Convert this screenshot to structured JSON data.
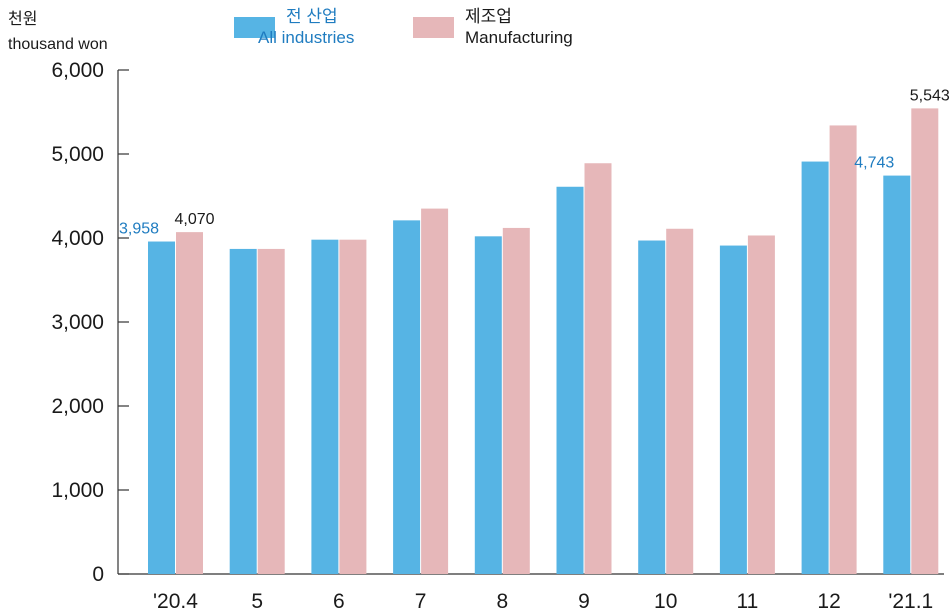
{
  "chart_data": {
    "type": "bar",
    "unit_ko": "천원",
    "unit_en": "thousand won",
    "categories": [
      "'20.4",
      "5",
      "6",
      "7",
      "8",
      "9",
      "10",
      "11",
      "12",
      "'21.1"
    ],
    "series": [
      {
        "name_ko": "전 산업",
        "name_en": "All industries",
        "color": "#56b4e4",
        "label_color": "#1f7cc0",
        "values": [
          3958,
          3870,
          3980,
          4210,
          4020,
          4610,
          3970,
          3910,
          4910,
          4743
        ],
        "data_labels": {
          "0": "3,958",
          "9": "4,743"
        }
      },
      {
        "name_ko": "제조업",
        "name_en": "Manufacturing",
        "color": "#e6b7b9",
        "label_color": "#1a1a1a",
        "values": [
          4070,
          3870,
          3980,
          4350,
          4120,
          4890,
          4110,
          4030,
          5340,
          5543
        ],
        "data_labels": {
          "0": "4,070",
          "9": "5,543"
        }
      }
    ],
    "yticks": [
      "0",
      "1,000",
      "2,000",
      "3,000",
      "4,000",
      "5,000",
      "6,000"
    ],
    "ylim": [
      0,
      6000
    ],
    "grid": false,
    "legend_position": "top-center"
  }
}
